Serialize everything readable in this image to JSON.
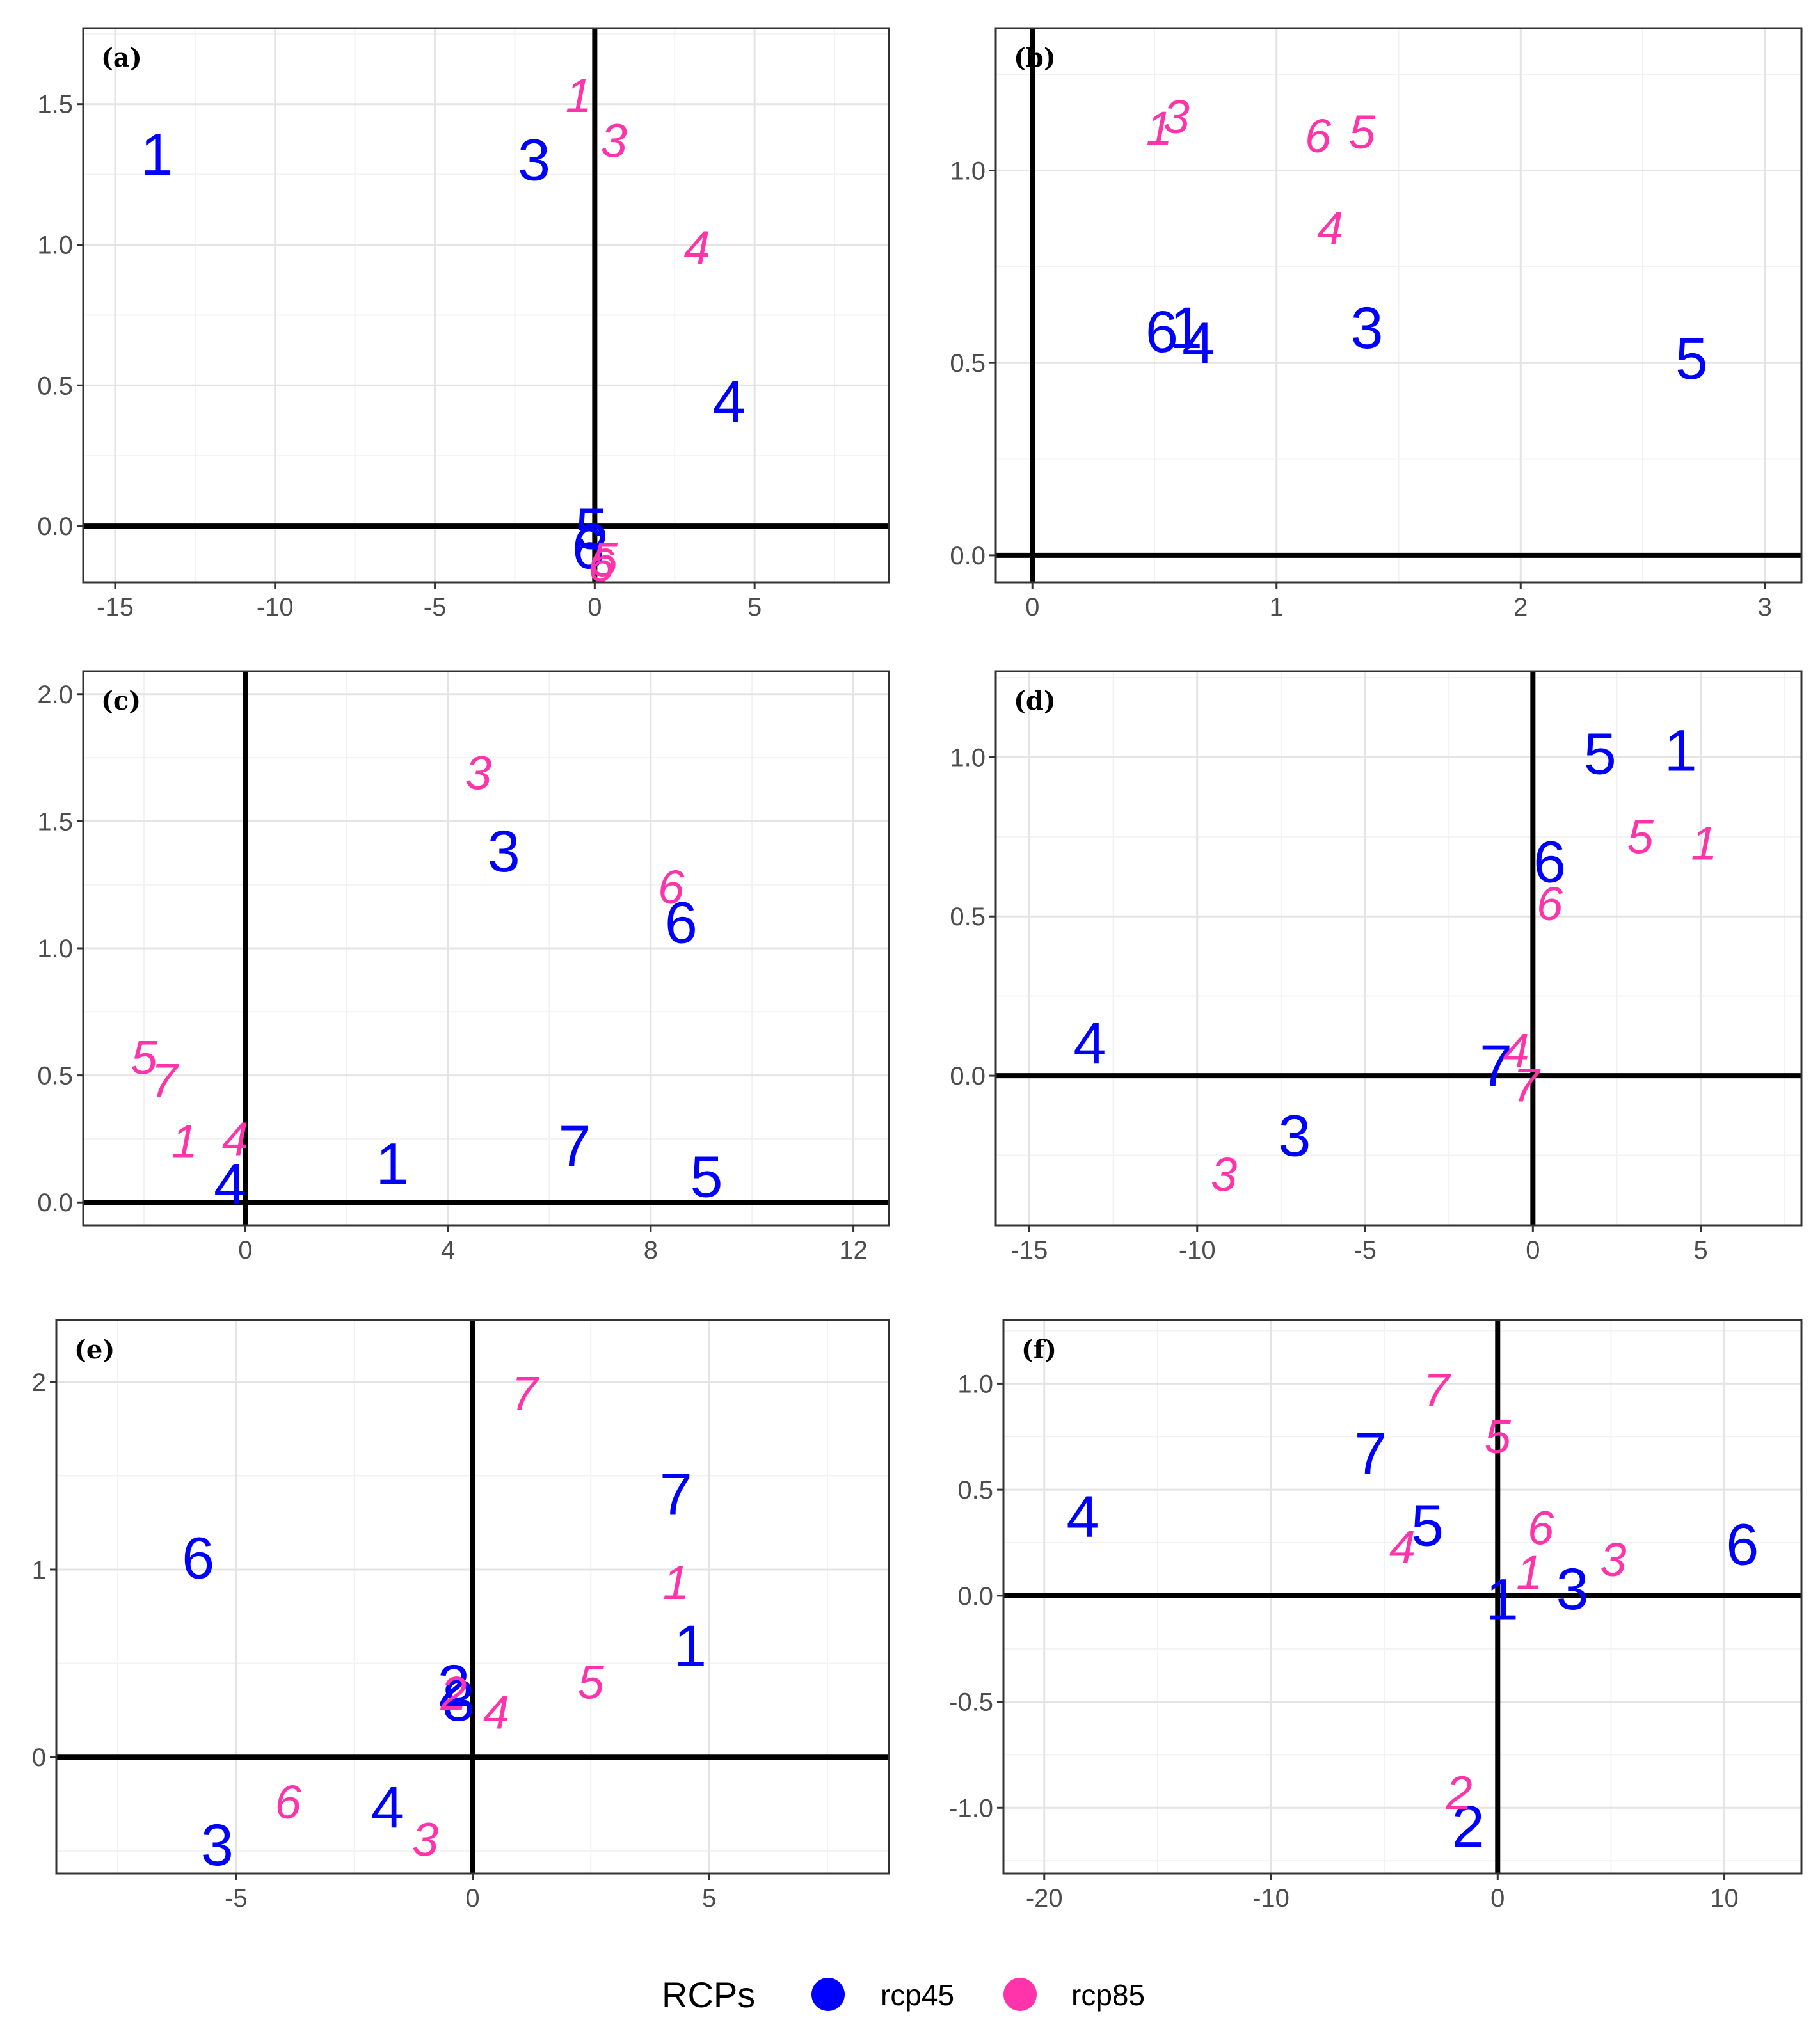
{
  "colors": {
    "rcp45": "#0000ff",
    "rcp85": "#ff33aa",
    "grid_major": "#e4e4e4",
    "grid_minor": "#f2f2f2",
    "frame": "#333333",
    "axis_line": "#000000"
  },
  "legend": {
    "title": "RCPs",
    "items": [
      {
        "label": "rcp45",
        "color": "#0000ff"
      },
      {
        "label": "rcp85",
        "color": "#ff33aa"
      }
    ]
  },
  "chart_data": [
    {
      "type": "scatter",
      "panel_label": "(a)",
      "xlim": [
        -16,
        9.2
      ],
      "ylim": [
        -0.2,
        1.77
      ],
      "xticks": [
        -15,
        -10,
        -5,
        0,
        5
      ],
      "xtick_labels": [
        "-15",
        "-10",
        "-5",
        "0",
        "5"
      ],
      "yticks": [
        0.0,
        0.5,
        1.0,
        1.5
      ],
      "ytick_labels": [
        "0.0",
        "0.5",
        "1.0",
        "1.5"
      ],
      "xminor": [
        -12.5,
        -7.5,
        -2.5,
        2.5,
        7.5
      ],
      "yminor": [
        0.25,
        0.75,
        1.25,
        1.75
      ],
      "series": [
        {
          "name": "rcp45",
          "points": [
            {
              "label": "1",
              "x": -13.7,
              "y": 1.32
            },
            {
              "label": "3",
              "x": -1.9,
              "y": 1.3
            },
            {
              "label": "4",
              "x": 4.2,
              "y": 0.44
            },
            {
              "label": "5",
              "x": -0.1,
              "y": -0.01
            },
            {
              "label": "6",
              "x": -0.2,
              "y": -0.08
            }
          ]
        },
        {
          "name": "rcp85",
          "points": [
            {
              "label": "1",
              "x": -0.5,
              "y": 1.53
            },
            {
              "label": "3",
              "x": 0.6,
              "y": 1.37
            },
            {
              "label": "4",
              "x": 3.2,
              "y": 0.99
            },
            {
              "label": "5",
              "x": 0.3,
              "y": -0.12
            },
            {
              "label": "6",
              "x": 0.2,
              "y": -0.14
            }
          ]
        }
      ]
    },
    {
      "type": "scatter",
      "panel_label": "(b)",
      "xlim": [
        -0.15,
        3.15
      ],
      "ylim": [
        -0.07,
        1.37
      ],
      "xticks": [
        0,
        1,
        2,
        3
      ],
      "xtick_labels": [
        "0",
        "1",
        "2",
        "3"
      ],
      "yticks": [
        0.0,
        0.5,
        1.0
      ],
      "ytick_labels": [
        "0.0",
        "0.5",
        "1.0"
      ],
      "xminor": [
        0.5,
        1.5,
        2.5
      ],
      "yminor": [
        0.25,
        0.75,
        1.25
      ],
      "series": [
        {
          "name": "rcp45",
          "points": [
            {
              "label": "6",
              "x": 0.53,
              "y": 0.58
            },
            {
              "label": "1",
              "x": 0.63,
              "y": 0.59
            },
            {
              "label": "4",
              "x": 0.68,
              "y": 0.55
            },
            {
              "label": "3",
              "x": 1.37,
              "y": 0.59
            },
            {
              "label": "5",
              "x": 2.7,
              "y": 0.51
            }
          ]
        },
        {
          "name": "rcp85",
          "points": [
            {
              "label": "1",
              "x": 0.52,
              "y": 1.11
            },
            {
              "label": "3",
              "x": 0.59,
              "y": 1.14
            },
            {
              "label": "6",
              "x": 1.17,
              "y": 1.09
            },
            {
              "label": "5",
              "x": 1.35,
              "y": 1.1
            },
            {
              "label": "4",
              "x": 1.22,
              "y": 0.85
            }
          ]
        }
      ]
    },
    {
      "type": "scatter",
      "panel_label": "(c)",
      "xlim": [
        -3.2,
        12.7
      ],
      "ylim": [
        -0.09,
        2.09
      ],
      "xticks": [
        0,
        4,
        8,
        12
      ],
      "xtick_labels": [
        "0",
        "4",
        "8",
        "12"
      ],
      "yticks": [
        0.0,
        0.5,
        1.0,
        1.5,
        2.0
      ],
      "ytick_labels": [
        "0.0",
        "0.5",
        "1.0",
        "1.5",
        "2.0"
      ],
      "xminor": [
        -2,
        2,
        6,
        10
      ],
      "yminor": [
        0.25,
        0.75,
        1.25,
        1.75
      ],
      "series": [
        {
          "name": "rcp45",
          "points": [
            {
              "label": "3",
              "x": 5.1,
              "y": 1.38
            },
            {
              "label": "6",
              "x": 8.6,
              "y": 1.1
            },
            {
              "label": "1",
              "x": 2.9,
              "y": 0.15
            },
            {
              "label": "7",
              "x": 6.5,
              "y": 0.22
            },
            {
              "label": "5",
              "x": 9.1,
              "y": 0.1
            },
            {
              "label": "4",
              "x": -0.3,
              "y": 0.07
            }
          ]
        },
        {
          "name": "rcp85",
          "points": [
            {
              "label": "3",
              "x": 4.6,
              "y": 1.69
            },
            {
              "label": "6",
              "x": 8.4,
              "y": 1.24
            },
            {
              "label": "5",
              "x": -2,
              "y": 0.57
            },
            {
              "label": "7",
              "x": -1.6,
              "y": 0.48
            },
            {
              "label": "1",
              "x": -1.2,
              "y": 0.24
            },
            {
              "label": "4",
              "x": -0.2,
              "y": 0.25
            }
          ]
        }
      ]
    },
    {
      "type": "scatter",
      "panel_label": "(d)",
      "xlim": [
        -16,
        8
      ],
      "ylim": [
        -0.47,
        1.27
      ],
      "xticks": [
        -15,
        -10,
        -5,
        0,
        5
      ],
      "xtick_labels": [
        "-15",
        "-10",
        "-5",
        "0",
        "5"
      ],
      "yticks": [
        0.0,
        0.5,
        1.0
      ],
      "ytick_labels": [
        "0.0",
        "0.5",
        "1.0"
      ],
      "xminor": [
        -12.5,
        -7.5,
        -2.5,
        2.5,
        7.5
      ],
      "yminor": [
        -0.25,
        0.25,
        0.75,
        1.25
      ],
      "series": [
        {
          "name": "rcp45",
          "points": [
            {
              "label": "5",
              "x": 2,
              "y": 1.01
            },
            {
              "label": "1",
              "x": 4.4,
              "y": 1.02
            },
            {
              "label": "6",
              "x": 0.5,
              "y": 0.67
            },
            {
              "label": "4",
              "x": -13.2,
              "y": 0.1
            },
            {
              "label": "7",
              "x": -1.1,
              "y": 0.03
            },
            {
              "label": "3",
              "x": -7.1,
              "y": -0.19
            }
          ]
        },
        {
          "name": "rcp85",
          "points": [
            {
              "label": "5",
              "x": 3.2,
              "y": 0.75
            },
            {
              "label": "1",
              "x": 5.1,
              "y": 0.73
            },
            {
              "label": "6",
              "x": 0.5,
              "y": 0.54
            },
            {
              "label": "4",
              "x": -0.5,
              "y": 0.08
            },
            {
              "label": "7",
              "x": -0.2,
              "y": -0.03
            },
            {
              "label": "3",
              "x": -9.2,
              "y": -0.31
            }
          ]
        }
      ]
    },
    {
      "type": "scatter",
      "panel_label": "(e)",
      "xlim": [
        -8.8,
        8.8
      ],
      "ylim": [
        -0.62,
        2.33
      ],
      "xticks": [
        -5,
        0,
        5
      ],
      "xtick_labels": [
        "-5",
        "0",
        "5"
      ],
      "yticks": [
        0,
        1,
        2
      ],
      "ytick_labels": [
        "0",
        "1",
        "2"
      ],
      "xminor": [
        -7.5,
        -2.5,
        2.5,
        7.5
      ],
      "yminor": [
        -0.5,
        0.5,
        1.5
      ],
      "series": [
        {
          "name": "rcp45",
          "points": [
            {
              "label": "7",
              "x": 4.3,
              "y": 1.4
            },
            {
              "label": "6",
              "x": -5.8,
              "y": 1.06
            },
            {
              "label": "1",
              "x": 4.6,
              "y": 0.59
            },
            {
              "label": "2",
              "x": -0.4,
              "y": 0.38
            },
            {
              "label": "8",
              "x": -0.3,
              "y": 0.3
            },
            {
              "label": "4",
              "x": -1.8,
              "y": -0.27
            },
            {
              "label": "3",
              "x": -5.4,
              "y": -0.47
            }
          ]
        },
        {
          "name": "rcp85",
          "points": [
            {
              "label": "7",
              "x": 1.1,
              "y": 1.94
            },
            {
              "label": "1",
              "x": 4.3,
              "y": 0.93
            },
            {
              "label": "5",
              "x": 2.5,
              "y": 0.4
            },
            {
              "label": "2",
              "x": -0.4,
              "y": 0.34
            },
            {
              "label": "4",
              "x": 0.5,
              "y": 0.24
            },
            {
              "label": "6",
              "x": -3.9,
              "y": -0.24
            },
            {
              "label": "3",
              "x": -1,
              "y": -0.44
            }
          ]
        }
      ]
    },
    {
      "type": "scatter",
      "panel_label": "(f)",
      "xlim": [
        -21.8,
        13.4
      ],
      "ylim": [
        -1.31,
        1.3
      ],
      "xticks": [
        -20,
        -10,
        0,
        10
      ],
      "xtick_labels": [
        "-20",
        "-10",
        "0",
        "10"
      ],
      "yticks": [
        -1.0,
        -0.5,
        0.0,
        0.5,
        1.0
      ],
      "ytick_labels": [
        "-1.0",
        "-0.5",
        "0.0",
        "0.5",
        "1.0"
      ],
      "xminor": [
        -15,
        -5,
        5
      ],
      "yminor": [
        -1.25,
        -0.75,
        -0.25,
        0.25,
        0.75,
        1.25
      ],
      "series": [
        {
          "name": "rcp45",
          "points": [
            {
              "label": "7",
              "x": -5.6,
              "y": 0.67
            },
            {
              "label": "4",
              "x": -18.3,
              "y": 0.37
            },
            {
              "label": "5",
              "x": -3.1,
              "y": 0.33
            },
            {
              "label": "6",
              "x": 10.8,
              "y": 0.24
            },
            {
              "label": "3",
              "x": 3.3,
              "y": 0.03
            },
            {
              "label": "1",
              "x": 0.2,
              "y": -0.02
            },
            {
              "label": "2",
              "x": -1.3,
              "y": -1.09
            }
          ]
        },
        {
          "name": "rcp85",
          "points": [
            {
              "label": "7",
              "x": -2.7,
              "y": 0.97
            },
            {
              "label": "5",
              "x": 0,
              "y": 0.75
            },
            {
              "label": "6",
              "x": 1.9,
              "y": 0.32
            },
            {
              "label": "4",
              "x": -4.2,
              "y": 0.23
            },
            {
              "label": "3",
              "x": 5.1,
              "y": 0.17
            },
            {
              "label": "1",
              "x": 1.4,
              "y": 0.11
            },
            {
              "label": "2",
              "x": -1.7,
              "y": -0.93
            }
          ]
        }
      ]
    }
  ]
}
